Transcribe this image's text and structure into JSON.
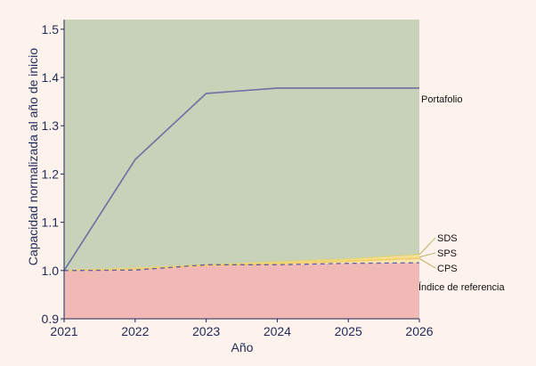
{
  "chart_data": {
    "type": "area",
    "xlabel": "Año",
    "ylabel": "Capacidad normalizada al año de inicio",
    "x": [
      2021,
      2022,
      2023,
      2024,
      2025,
      2026
    ],
    "xticks": [
      "2021",
      "2022",
      "2023",
      "2024",
      "2025",
      "2026"
    ],
    "yticks": [
      "0.9",
      "1.0",
      "1.1",
      "1.2",
      "1.3",
      "1.4",
      "1.5"
    ],
    "ylim": [
      0.9,
      1.52
    ],
    "xlim": [
      2021,
      2026
    ],
    "grid": false,
    "series": [
      {
        "name": "Portafolio",
        "values": [
          1.0,
          1.23,
          1.367,
          1.378,
          1.378,
          1.378
        ],
        "style": "line"
      },
      {
        "name": "SDS",
        "values": [
          1.0,
          1.005,
          1.012,
          1.018,
          1.024,
          1.033
        ],
        "style": "line"
      },
      {
        "name": "SPS",
        "values": [
          1.0,
          1.004,
          1.011,
          1.016,
          1.021,
          1.028
        ],
        "style": "line"
      },
      {
        "name": "CPS",
        "values": [
          1.0,
          1.003,
          1.01,
          1.014,
          1.019,
          1.025
        ],
        "style": "line"
      },
      {
        "name": "Índice de referencia",
        "values": [
          1.0,
          1.001,
          1.012,
          1.012,
          1.015,
          1.016
        ],
        "style": "dashed"
      }
    ],
    "colors": {
      "background": "#fdf3ec",
      "upper_region": "#c8d2b8",
      "lower_region": "#f0b9b6",
      "portfolio": "#6c6fa4",
      "benchmark": "#5a5fa8",
      "sds": "#e6d27a",
      "sps": "#f0dc70",
      "cps": "#f5c96a",
      "leader": "#b8a64a",
      "axis_text": "#1f2a5a"
    }
  }
}
